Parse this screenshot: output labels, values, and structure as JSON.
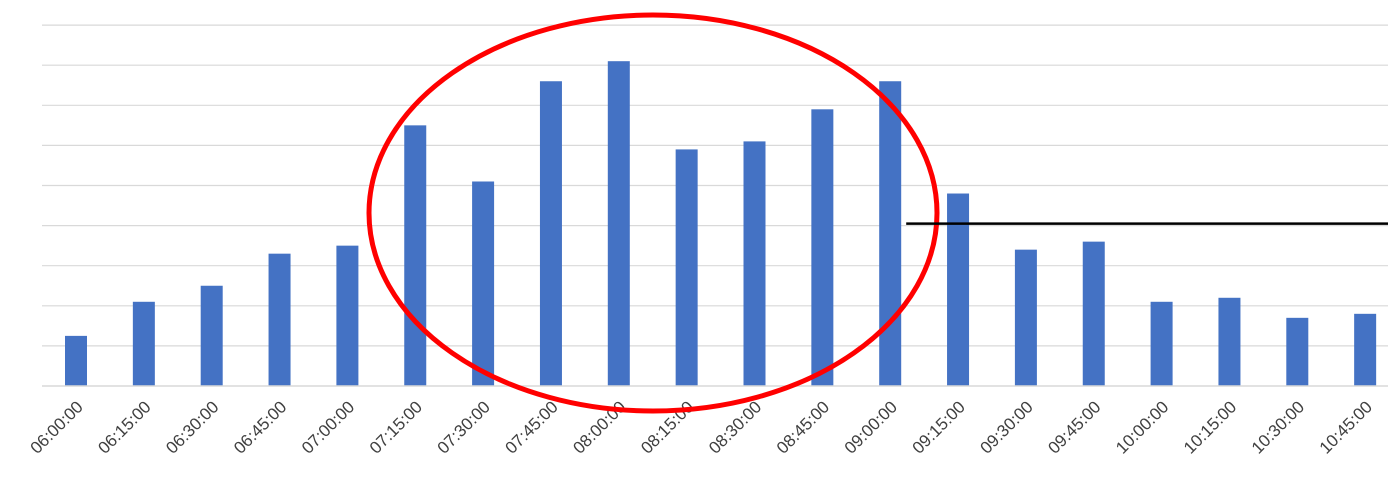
{
  "chart_data": {
    "type": "bar",
    "title": "",
    "xlabel": "",
    "ylabel": "",
    "ylim": [
      0,
      9
    ],
    "grid": true,
    "y_tick_labels": "none",
    "categories": [
      "06:00:00",
      "06:15:00",
      "06:30:00",
      "06:45:00",
      "07:00:00",
      "07:15:00",
      "07:30:00",
      "07:45:00",
      "08:00:00",
      "08:15:00",
      "08:30:00",
      "08:45:00",
      "09:00:00",
      "09:15:00",
      "09:30:00",
      "09:45:00",
      "10:00:00",
      "10:15:00",
      "10:30:00",
      "10:45:00"
    ],
    "values": [
      1.25,
      2.1,
      2.5,
      3.3,
      3.5,
      6.5,
      5.1,
      7.6,
      8.1,
      5.9,
      6.1,
      6.9,
      7.6,
      4.8,
      3.4,
      3.6,
      2.1,
      2.2,
      1.7,
      1.8
    ],
    "bar_color": "#4472C4",
    "annotations": {
      "ellipse": {
        "color": "#FF0000",
        "around_categories": [
          "07:15:00",
          "09:00:00"
        ]
      },
      "reference_line": {
        "color": "#000000",
        "y": 4.05,
        "from_category": "09:00:00",
        "to": "right-edge"
      }
    }
  }
}
